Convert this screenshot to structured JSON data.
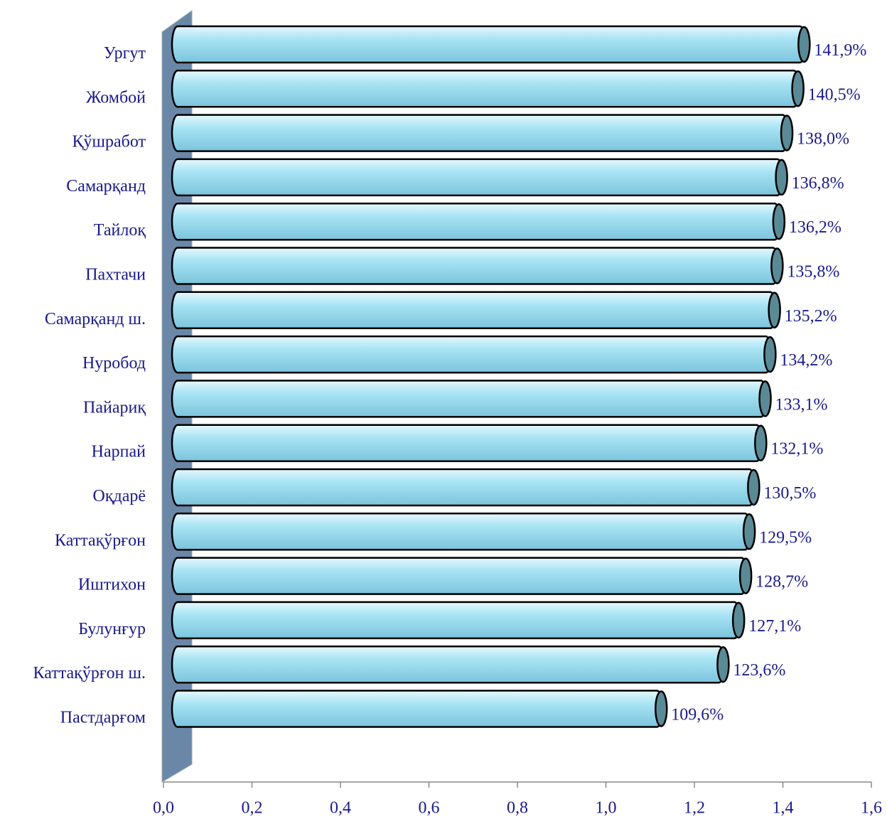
{
  "chart_data": {
    "type": "bar",
    "orientation": "horizontal",
    "categories": [
      "Ургут",
      "Жомбой",
      "Қўшработ",
      "Самарқанд",
      "Тайлоқ",
      "Пахтачи",
      "Самарқанд ш.",
      "Нуробод",
      "Пайариқ",
      "Нарпай",
      "Оқдарё",
      "Каттақўрғон",
      "Иштихон",
      "Булунғур",
      "Каттақўрғон ш.",
      "Пастдарғом"
    ],
    "values": [
      1.419,
      1.405,
      1.38,
      1.368,
      1.362,
      1.358,
      1.352,
      1.342,
      1.331,
      1.321,
      1.305,
      1.295,
      1.287,
      1.271,
      1.236,
      1.096
    ],
    "value_labels": [
      "141,9%",
      "140,5%",
      "138,0%",
      "136,8%",
      "136,2%",
      "135,8%",
      "135,2%",
      "134,2%",
      "133,1%",
      "132,1%",
      "130,5%",
      "129,5%",
      "128,7%",
      "127,1%",
      "123,6%",
      "109,6%"
    ],
    "color": "#a8e4f4",
    "xlim": [
      0,
      1.6
    ],
    "xticks": [
      {
        "value": 0,
        "label": "0,0"
      },
      {
        "value": 0.2,
        "label": "0,2"
      },
      {
        "value": 0.4,
        "label": "0,4"
      },
      {
        "value": 0.6,
        "label": "0,6"
      },
      {
        "value": 0.8,
        "label": "0,8"
      },
      {
        "value": 1.0,
        "label": "1,0"
      },
      {
        "value": 1.2,
        "label": "1,2"
      },
      {
        "value": 1.4,
        "label": "1,4"
      },
      {
        "value": 1.6,
        "label": "1,6"
      }
    ],
    "grid": false
  }
}
